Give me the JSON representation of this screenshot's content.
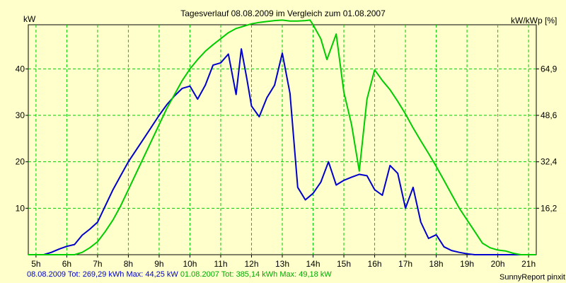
{
  "chart_data": {
    "type": "line",
    "title": "Tagesverlauf 08.08.2009 im Vergleich zum 01.08.2007",
    "ylabel_left": "kW",
    "ylabel_right": "kW/kWp [%]",
    "x_ticks": [
      "5h",
      "6h",
      "7h",
      "8h",
      "9h",
      "10h",
      "11h",
      "12h",
      "13h",
      "14h",
      "15h",
      "16h",
      "17h",
      "18h",
      "19h",
      "20h",
      "21h"
    ],
    "xlim": [
      4.75,
      21.25
    ],
    "ylim": [
      0,
      49.5
    ],
    "y_ticks_left": [
      "10",
      "20",
      "30",
      "40"
    ],
    "y_ticks_left_values": [
      10,
      20,
      30,
      40
    ],
    "y_ticks_right": [
      "16,2",
      "32,4",
      "48,6",
      "64,9"
    ],
    "grid": true,
    "series": [
      {
        "name": "08.08.2009",
        "color": "#0000CC",
        "x": [
          4.75,
          5.25,
          5.5,
          5.75,
          6.0,
          6.25,
          6.5,
          6.75,
          7.0,
          7.25,
          7.5,
          7.75,
          8.0,
          8.25,
          8.5,
          8.75,
          9.0,
          9.25,
          9.5,
          9.75,
          10.0,
          10.25,
          10.5,
          10.75,
          11.0,
          11.25,
          11.5,
          11.67,
          11.85,
          12.0,
          12.25,
          12.5,
          12.75,
          13.0,
          13.25,
          13.5,
          13.75,
          14.0,
          14.25,
          14.5,
          14.75,
          15.0,
          15.25,
          15.5,
          15.75,
          16.0,
          16.25,
          16.5,
          16.75,
          17.0,
          17.25,
          17.5,
          17.75,
          18.0,
          18.25,
          18.5,
          18.75,
          19.0,
          19.25,
          19.5,
          20.0,
          21.25
        ],
        "y": [
          0,
          0,
          0.5,
          1.2,
          1.8,
          2.2,
          4.2,
          5.5,
          7.0,
          10.5,
          14.0,
          17.0,
          20.0,
          22.5,
          25.0,
          27.5,
          30.0,
          32.3,
          34.2,
          35.8,
          36.3,
          33.5,
          36.5,
          40.8,
          41.3,
          43.2,
          34.5,
          44.3,
          37.8,
          32.0,
          29.7,
          33.8,
          36.5,
          43.4,
          34.7,
          14.5,
          11.8,
          13.2,
          15.6,
          20.0,
          15.0,
          16.0,
          16.7,
          17.3,
          17.0,
          14.0,
          12.8,
          19.2,
          17.5,
          10.0,
          14.5,
          7.0,
          3.5,
          4.3,
          1.7,
          0.9,
          0.5,
          0.2,
          0,
          0,
          0,
          0
        ]
      },
      {
        "name": "01.08.2007",
        "color": "#00CC00",
        "x": [
          4.75,
          6.0,
          6.25,
          6.5,
          6.75,
          7.0,
          7.25,
          7.5,
          7.75,
          8.0,
          8.25,
          8.5,
          8.75,
          9.0,
          9.25,
          9.5,
          9.75,
          10.0,
          10.25,
          10.5,
          10.75,
          11.0,
          11.25,
          11.5,
          11.75,
          12.0,
          12.25,
          12.5,
          12.75,
          13.0,
          13.25,
          13.5,
          13.75,
          13.9,
          14.0,
          14.25,
          14.45,
          14.75,
          15.0,
          15.25,
          15.5,
          15.75,
          16.0,
          16.25,
          16.5,
          16.75,
          17.0,
          17.25,
          17.5,
          17.75,
          18.0,
          18.25,
          18.5,
          18.75,
          19.0,
          19.25,
          19.5,
          19.75,
          20.0,
          20.25,
          20.5,
          20.75,
          21.0,
          21.25
        ],
        "y": [
          0,
          0,
          0,
          0.5,
          1.5,
          2.8,
          5.0,
          7.5,
          10.5,
          14.0,
          17.5,
          21.0,
          24.5,
          28.0,
          31.5,
          34.5,
          37.5,
          40.0,
          42.0,
          43.8,
          45.2,
          46.5,
          47.8,
          48.7,
          49.2,
          49.7,
          50.0,
          50.2,
          50.4,
          50.5,
          50.3,
          50.3,
          50.4,
          50.5,
          49.5,
          46.5,
          42.0,
          47.5,
          35.0,
          28.0,
          18.0,
          33.5,
          39.8,
          37.5,
          35.5,
          33.0,
          30.3,
          27.3,
          24.5,
          21.8,
          19.0,
          16.0,
          13.0,
          10.0,
          7.5,
          5.0,
          2.5,
          1.5,
          1.0,
          0.8,
          0.3,
          0,
          0,
          0
        ]
      }
    ],
    "footer": {
      "series1_label": "08.08.2009 Tot: 269,29 kWh Max: 44,25 kW",
      "series2_label": "01.08.2007 Tot: 385,14 kWh Max: 49,18 kW"
    },
    "credit": "SunnyReport pinxit"
  }
}
